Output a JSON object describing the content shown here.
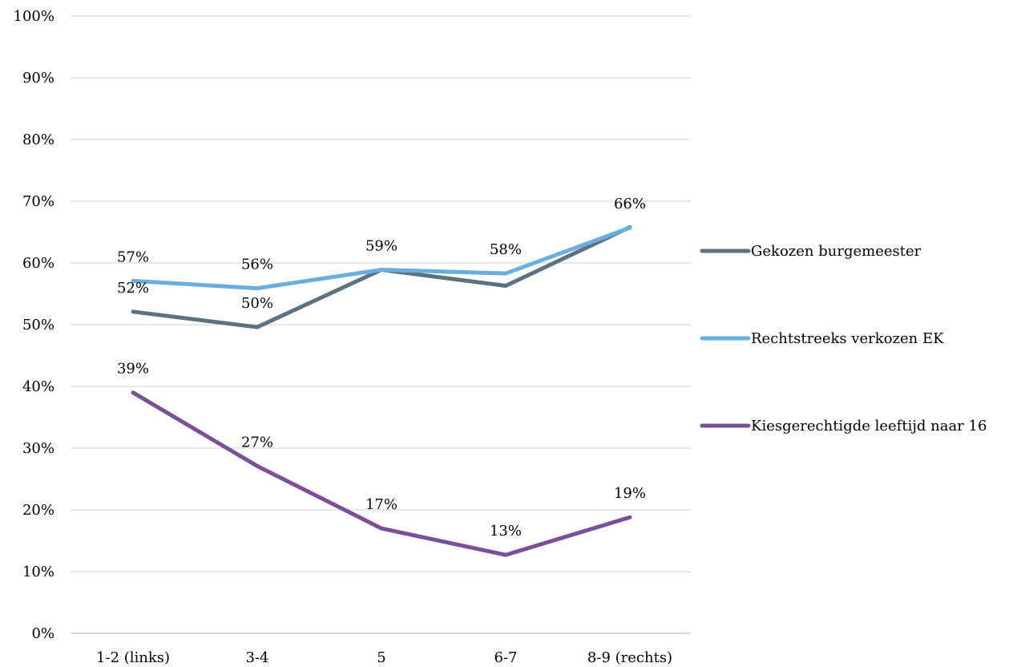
{
  "chart_data": {
    "type": "line",
    "title": "",
    "xlabel": "",
    "ylabel": "",
    "categories": [
      "1-2 (links)",
      "3-4",
      "5",
      "6-7",
      "8-9 (rechts)"
    ],
    "ylim": [
      0,
      100
    ],
    "y_ticks": [
      0,
      10,
      20,
      30,
      40,
      50,
      60,
      70,
      80,
      90,
      100
    ],
    "y_tick_labels": [
      "0%",
      "10%",
      "20%",
      "30%",
      "40%",
      "50%",
      "60%",
      "70%",
      "80%",
      "90%",
      "100%"
    ],
    "grid": true,
    "legend_position": "right",
    "series": [
      {
        "name": "Gekozen burgemeester",
        "color": "#5a7282",
        "values": [
          52.1,
          49.6,
          58.9,
          56.3,
          65.8
        ],
        "labels": [
          "52%",
          "50%",
          "",
          "",
          ""
        ]
      },
      {
        "name": "Rechtstreeks verkozen EK",
        "color": "#6aaee0",
        "values": [
          57.1,
          55.9,
          58.9,
          58.3,
          65.7
        ],
        "labels": [
          "57%",
          "56%",
          "59%",
          "58%",
          "66%"
        ]
      },
      {
        "name": "Kiesgerechtigde leeftijd naar 16",
        "color": "#7b4f9a",
        "values": [
          39.0,
          27.1,
          17.0,
          12.7,
          18.8
        ],
        "labels": [
          "39%",
          "27%",
          "17%",
          "13%",
          "19%"
        ]
      }
    ]
  }
}
